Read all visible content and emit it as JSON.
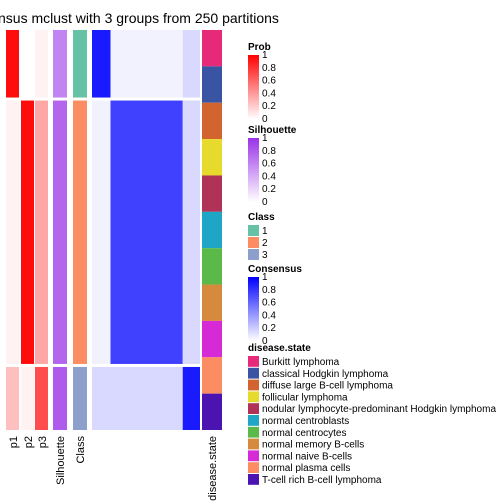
{
  "chart_data": {
    "type": "heatmap",
    "title": "nsus mclust with 3 groups from 250 partitions",
    "column_labels": [
      "p1",
      "p2",
      "p3",
      "Silhouette",
      "Class",
      "disease.state"
    ],
    "legends": {
      "prob": {
        "title": "Prob",
        "ticks": [
          "1",
          "0.8",
          "0.6",
          "0.4",
          "0.2",
          "0"
        ],
        "color_high": "#ff0000",
        "color_low": "#ffffff"
      },
      "silhouette": {
        "title": "Silhouette",
        "ticks": [
          "1",
          "0.8",
          "0.6",
          "0.4",
          "0.2",
          "0"
        ],
        "color_high": "#9a32e8",
        "color_low": "#ffffff"
      },
      "class": {
        "title": "Class",
        "items": [
          {
            "label": "1",
            "color": "#66c2a5"
          },
          {
            "label": "2",
            "color": "#fc8d62"
          },
          {
            "label": "3",
            "color": "#8da0cb"
          }
        ]
      },
      "consensus": {
        "title": "Consensus",
        "ticks": [
          "1",
          "0.8",
          "0.6",
          "0.4",
          "0.2",
          "0"
        ],
        "color_high": "#0000ff",
        "color_low": "#ffffff"
      },
      "disease": {
        "title": "disease.state",
        "items": [
          {
            "label": "Burkitt lymphoma",
            "color": "#e7297a"
          },
          {
            "label": "classical Hodgkin lymphoma",
            "color": "#3a54a4"
          },
          {
            "label": "diffuse large B-cell lymphoma",
            "color": "#d2652f"
          },
          {
            "label": "follicular lymphoma",
            "color": "#e6db2c"
          },
          {
            "label": "nodular lymphocyte-predominant Hodgkin lymphoma",
            "color": "#b03256"
          },
          {
            "label": "normal centroblasts",
            "color": "#1fa6c6"
          },
          {
            "label": "normal centrocytes",
            "color": "#5ab948"
          },
          {
            "label": "normal memory B-cells",
            "color": "#d68a3e"
          },
          {
            "label": "normal naive B-cells",
            "color": "#d62ad6"
          },
          {
            "label": "normal plasma cells",
            "color": "#fc8d62"
          },
          {
            "label": "T-cell rich B-cell lymphoma",
            "color": "#4b14b0"
          }
        ]
      }
    },
    "groups": [
      {
        "class": "1",
        "n": 30,
        "p": [
          0.95,
          0.0,
          0.05
        ],
        "silhouette": 0.6
      },
      {
        "class": "2",
        "n": 117,
        "p": [
          0.05,
          0.95,
          0.35
        ],
        "silhouette": 0.75
      },
      {
        "class": "3",
        "n": 28,
        "p": [
          0.25,
          0.05,
          0.7
        ],
        "silhouette": 0.8
      }
    ],
    "consensus_blocks": [
      [
        0.9,
        0.05,
        0.15
      ],
      [
        0.05,
        0.75,
        0.15
      ],
      [
        0.15,
        0.15,
        0.9
      ]
    ]
  }
}
